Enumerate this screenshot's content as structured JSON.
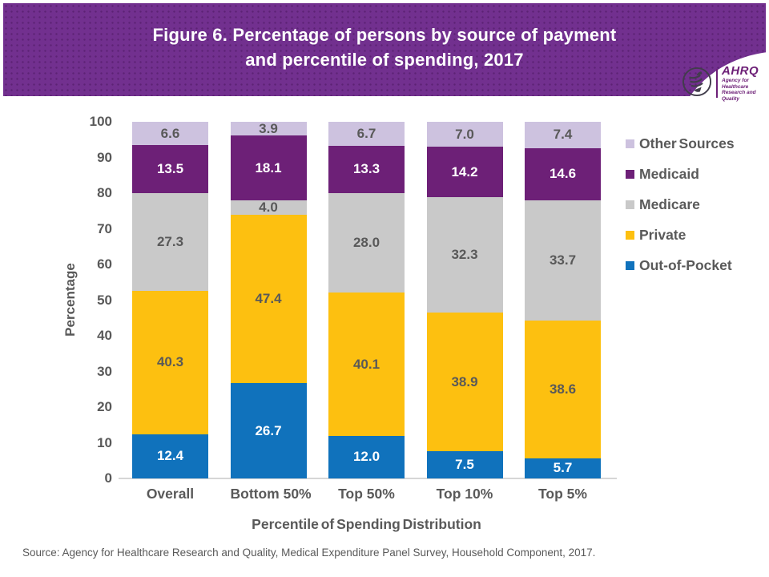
{
  "banner": {
    "title_line1": "Figure 6. Percentage of persons by source of payment",
    "title_line2": "and percentile of spending, 2017",
    "bg_color": "#72308F"
  },
  "logo": {
    "org": "AHRQ",
    "tagline_line1": "Agency for Healthcare",
    "tagline_line2": "Research and Quality",
    "color": "#6D2077"
  },
  "chart_data": {
    "type": "bar",
    "stacked": true,
    "title": "Figure 6. Percentage of persons by source of payment and percentile of spending, 2017",
    "categories": [
      "Overall",
      "Bottom 50%",
      "Top 50%",
      "Top 10%",
      "Top 5%"
    ],
    "series": [
      {
        "name": "Out-of-Pocket",
        "color": "#1072BC",
        "label_color": "#FFFFFF",
        "values": [
          12.4,
          26.7,
          12.0,
          7.5,
          5.7
        ]
      },
      {
        "name": "Private",
        "color": "#FDC010",
        "label_color": "#595959",
        "values": [
          40.3,
          47.4,
          40.1,
          38.9,
          38.6
        ]
      },
      {
        "name": "Medicare",
        "color": "#C9C9C9",
        "label_color": "#595959",
        "values": [
          27.3,
          4.0,
          28.0,
          32.3,
          33.7
        ]
      },
      {
        "name": "Medicaid",
        "color": "#6D2077",
        "label_color": "#FFFFFF",
        "values": [
          13.5,
          18.1,
          13.3,
          14.2,
          14.6
        ]
      },
      {
        "name": "Other Sources",
        "color": "#CDC2DF",
        "label_color": "#595959",
        "values": [
          6.6,
          3.9,
          6.7,
          7.0,
          7.4
        ]
      }
    ],
    "legend_top_to_bottom": [
      "Other Sources",
      "Medicaid",
      "Medicare",
      "Private",
      "Out-of-Pocket"
    ],
    "legend_position": "right",
    "xlabel": "Percentile of Spending Distribution",
    "ylabel": "Percentage",
    "ylim": [
      0,
      100
    ],
    "ytick_step": 10,
    "grid": false
  },
  "source_note": "Source: Agency for Healthcare Research and Quality, Medical Expenditure Panel Survey, Household Component, 2017."
}
